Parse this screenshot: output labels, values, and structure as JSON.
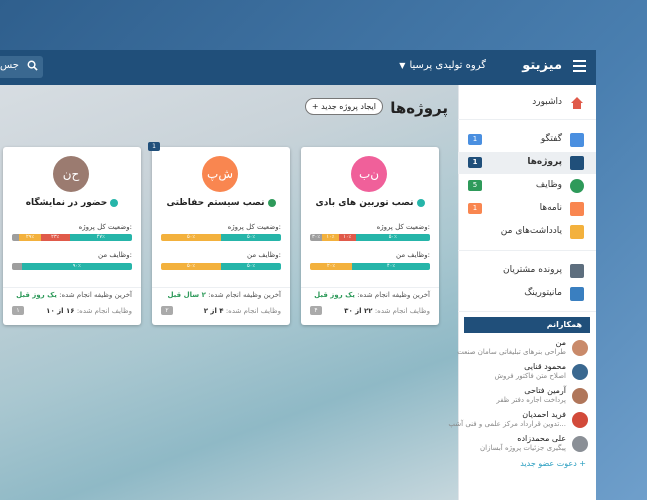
{
  "app": {
    "brand": "میزیتو",
    "group": "گروه تولیدی پرسیا",
    "search_text": "جس"
  },
  "page": {
    "title": "پروژه‌ها",
    "new_button": "ایجاد پروژه جدید"
  },
  "sidebar": {
    "items": [
      {
        "label": "داشبورد",
        "icon": "home-icon"
      },
      {
        "label": "گفتگو",
        "icon": "chat-icon",
        "badge": "1"
      },
      {
        "label": "پروژه‌ها",
        "icon": "projects-icon",
        "badge": "1"
      },
      {
        "label": "وظایف",
        "icon": "tasks-icon",
        "badge": "5"
      },
      {
        "label": "نامه‌ها",
        "icon": "letters-icon",
        "badge": "1"
      },
      {
        "label": "یادداشت‌های من",
        "icon": "notes-icon"
      },
      {
        "label": "پرونده مشتریان",
        "icon": "customer-file-icon"
      },
      {
        "label": "مانیتورینگ",
        "icon": "monitoring-icon"
      }
    ],
    "team_title": "همکارانم",
    "members": [
      {
        "name": "من",
        "sub": "طراحی بنرهای تبلیغاتی سامان صنعت"
      },
      {
        "name": "محمود قنایی",
        "sub": "اصلاح متن فاکتور فروش"
      },
      {
        "name": "آرمین فتاحی",
        "sub": "پرداخت اجاره دفتر ظفر"
      },
      {
        "name": "فرید احمدیان",
        "sub": "تدوین قرارداد مرکز علمی و فنی آشپ..."
      },
      {
        "name": "علی محمدزاده",
        "sub": "پیگیری جزئیات پروژه آبسازان"
      }
    ],
    "invite": "دعوت عضو جدید"
  },
  "labels": {
    "overall": "وضعیت کل پروژه:",
    "mine": "وظایف من:",
    "last_done": "آخرین وظیفه انجام شده:",
    "done_tasks": "وظایف انجام شده:"
  },
  "projects": [
    {
      "initials": "ن‌ب",
      "title": "نصب توربین های بادی",
      "last": "یک روز قبل",
      "done": "۲۲ از ۳۰",
      "num": "۴",
      "overall": [
        "۵۰٪",
        "۱۰٪",
        "۱۰٪",
        "۳۰٪"
      ],
      "mine": [
        "۲۰٪",
        "۴۰٪"
      ]
    },
    {
      "initials": "ش‌پ",
      "title": "نصب سیستم حفاظتی",
      "last": "۲ سال قبل",
      "done": "۴ از ۲",
      "num": "۲",
      "overall": [
        "۵۰٪",
        "۵۰٪"
      ],
      "mine": [
        "۵۰٪",
        "۵۰٪"
      ],
      "corner": "1"
    },
    {
      "initials": "ح‌ن",
      "title": "حضور در نمایشگاه",
      "last": "یک روز قبل",
      "done": "۱۶ از ۱۰",
      "num": "۱",
      "overall": [
        "۴۷٪",
        "۲۳٪",
        "۲۹٪"
      ],
      "mine": [
        "۹۰٪"
      ]
    }
  ],
  "colors": {
    "primary": "#204f7a",
    "teal": "#26b5a9",
    "orange": "#f3b13d",
    "red": "#e05a4a",
    "grey": "#9e9e9e",
    "green": "#2e9a5a"
  }
}
